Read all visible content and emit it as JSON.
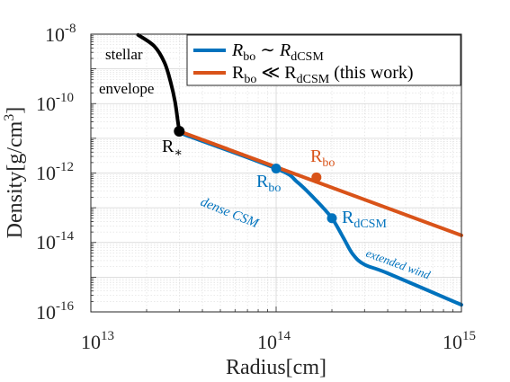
{
  "chart_data": {
    "type": "line",
    "xscale": "log",
    "yscale": "log",
    "xlim": [
      10000000000000.0,
      1000000000000000.0
    ],
    "ylim": [
      1e-16,
      1e-08
    ],
    "grid": true,
    "legend_position": "top-right",
    "xlabel": "Radius[cm]",
    "ylabel_main": "Density[g/cm",
    "ylabel_sup": "3",
    "ylabel_end": "]",
    "x_ticks": [
      {
        "value": 10000000000000.0,
        "base": "10",
        "exp": "13"
      },
      {
        "value": 100000000000000.0,
        "base": "10",
        "exp": "14"
      },
      {
        "value": 1000000000000000.0,
        "base": "10",
        "exp": "15"
      }
    ],
    "y_ticks": [
      {
        "value": 1e-08,
        "base": "10",
        "exp": "-8"
      },
      {
        "value": 1e-10,
        "base": "10",
        "exp": "-10"
      },
      {
        "value": 1e-12,
        "base": "10",
        "exp": "-12"
      },
      {
        "value": 1e-14,
        "base": "10",
        "exp": "-14"
      },
      {
        "value": 1e-16,
        "base": "10",
        "exp": "-16"
      }
    ],
    "series": [
      {
        "key": "envelope",
        "color": "#000000",
        "points": [
          [
            18000000000000.0,
            9.5e-09
          ],
          [
            22000000000000.0,
            4.5e-09
          ],
          [
            25000000000000.0,
            1.5e-09
          ],
          [
            27000000000000.0,
            4e-10
          ],
          [
            28500000000000.0,
            1.1e-10
          ],
          [
            29500000000000.0,
            3e-11
          ],
          [
            30000000000000.0,
            1.6e-11
          ]
        ]
      },
      {
        "key": "rbo_sim_rdcsm",
        "name_main": "R",
        "name_sub": "bo",
        "name_rel": " ∼ ",
        "name_main2": "R",
        "name_sub2": "dCSM",
        "color": "#0072BD",
        "points": [
          [
            30000000000000.0,
            1.45e-11
          ],
          [
            100000000000000.0,
            1.35e-12
          ],
          [
            130000000000000.0,
            5.5e-13
          ],
          [
            165000000000000.0,
            1.6e-13
          ],
          [
            200000000000000.0,
            5e-14
          ],
          [
            230000000000000.0,
            1.4e-14
          ],
          [
            260000000000000.0,
            4.5e-15
          ],
          [
            300000000000000.0,
            2.3e-15
          ],
          [
            400000000000000.0,
            1.3e-15
          ],
          [
            1000000000000000.0,
            1.6e-16
          ]
        ]
      },
      {
        "key": "rbo_ll_rdcsm",
        "name_main": "R",
        "name_sub": "bo",
        "name_rel": " ≪ ",
        "name_main2": "R",
        "name_sub2": "dCSM",
        "name_suffix": " (this work)",
        "color": "#D95319",
        "points": [
          [
            30000000000000.0,
            1.6e-11
          ],
          [
            1000000000000000.0,
            1.6e-14
          ]
        ]
      }
    ],
    "markers": [
      {
        "key": "rstar",
        "x": 30000000000000.0,
        "y": 1.6e-11,
        "color": "#000000"
      },
      {
        "key": "rbo_blue",
        "x": 100000000000000.0,
        "y": 1.35e-12,
        "color": "#0072BD"
      },
      {
        "key": "rbo_orange",
        "x": 165000000000000.0,
        "y": 7.5e-13,
        "color": "#D95319"
      },
      {
        "key": "rdcsm",
        "x": 200000000000000.0,
        "y": 5e-14,
        "color": "#0072BD"
      }
    ],
    "annotations": {
      "stellar": "stellar",
      "envelope": "envelope",
      "rstar_main": "R",
      "rstar_sub": "∗",
      "rbo_blue_main": "R",
      "rbo_blue_sub": "bo",
      "rbo_orange_main": "R",
      "rbo_orange_sub": "bo",
      "rdcsm_main": "R",
      "rdcsm_sub": "dCSM",
      "dense_csm": "dense CSM",
      "extended_wind": "extended wind"
    }
  }
}
